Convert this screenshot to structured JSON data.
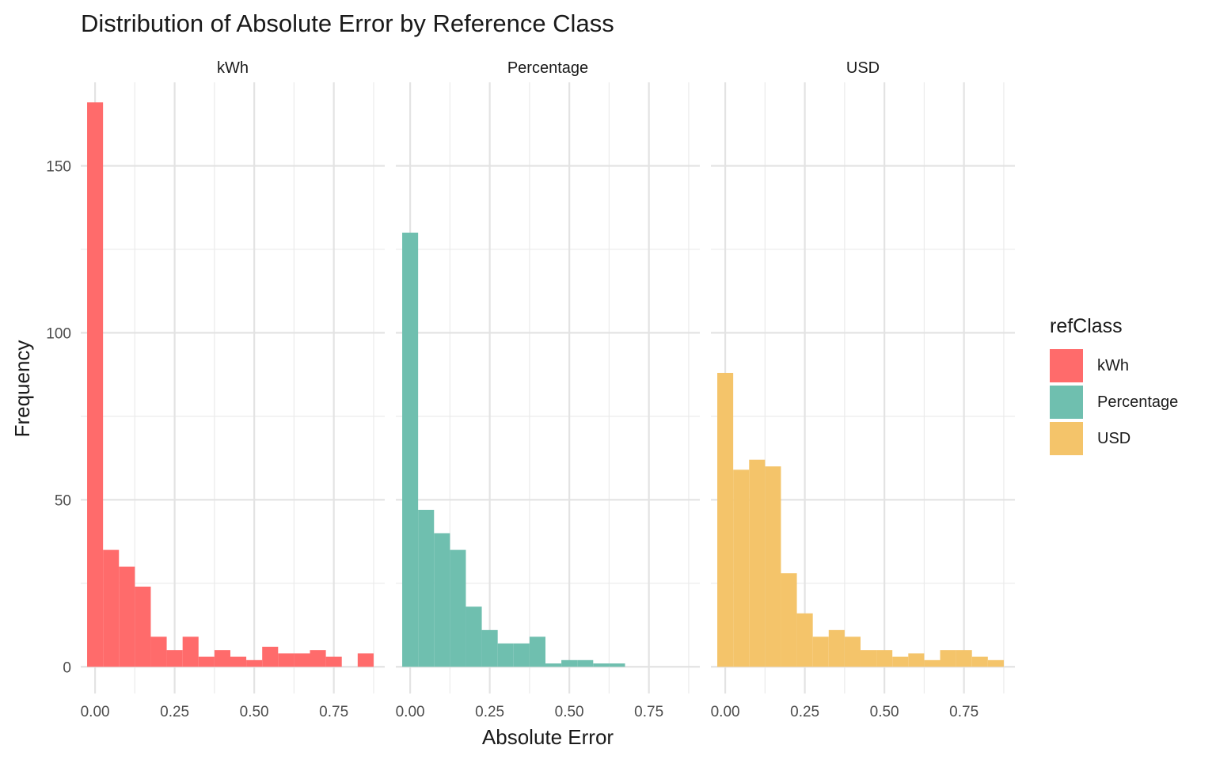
{
  "chart_data": {
    "type": "bar",
    "title": "Distribution of Absolute Error by Reference Class",
    "xlabel": "Absolute Error",
    "ylabel": "Frequency",
    "legend_title": "refClass",
    "legend_position": "right",
    "grid": true,
    "ylim": [
      -8,
      175
    ],
    "y_ticks": [
      0,
      50,
      100,
      150
    ],
    "y_tick_labels": [
      "0",
      "50",
      "100",
      "150"
    ],
    "xlim": [
      -0.045,
      0.91
    ],
    "x_ticks": [
      0,
      0.25,
      0.5,
      0.75
    ],
    "x_tick_labels": [
      "0.00",
      "0.25",
      "0.50",
      "0.75"
    ],
    "bin_width": 0.05,
    "bin_start": -0.025,
    "series": [
      {
        "name": "kWh",
        "color": "#FF6B6B",
        "values": [
          169,
          35,
          30,
          24,
          9,
          5,
          9,
          3,
          5,
          3,
          2,
          6,
          4,
          4,
          5,
          3,
          0,
          4
        ]
      },
      {
        "name": "Percentage",
        "color": "#6FBFAF",
        "values": [
          130,
          47,
          40,
          35,
          18,
          11,
          7,
          7,
          9,
          1,
          2,
          2,
          1,
          1
        ]
      },
      {
        "name": "USD",
        "color": "#F4C46A",
        "values": [
          88,
          59,
          62,
          60,
          28,
          16,
          9,
          11,
          9,
          5,
          5,
          3,
          4,
          2,
          5,
          5,
          3,
          2
        ]
      }
    ]
  }
}
